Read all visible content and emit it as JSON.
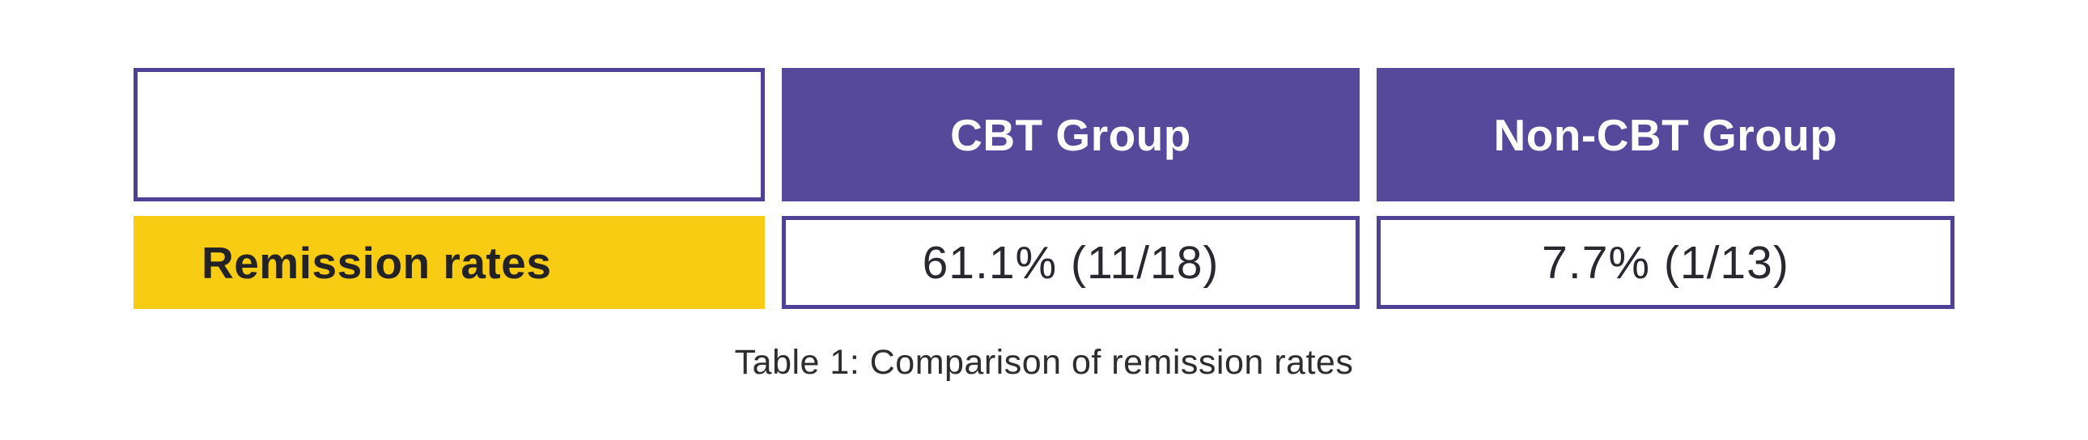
{
  "table": {
    "corner_label": "",
    "columns": [
      {
        "label": "CBT Group"
      },
      {
        "label": "Non-CBT Group"
      }
    ],
    "rows": [
      {
        "label": "Remission rates",
        "values": [
          "61.1% (11/18)",
          "7.7% (1/13)"
        ]
      }
    ],
    "caption": "Table 1: Comparison of remission rates"
  },
  "colors": {
    "header_purple": "#56489A",
    "border_purple": "#4F4296",
    "accent_yellow": "#F8CC12",
    "text_dark": "#232227",
    "text_white": "#FFFFFF",
    "background": "#FFFFFF"
  },
  "chart_data": {
    "type": "table",
    "title": "Table 1: Comparison of remission rates",
    "columns": [
      "",
      "CBT Group",
      "Non-CBT Group"
    ],
    "rows": [
      [
        "Remission rates",
        "61.1% (11/18)",
        "7.7% (1/13)"
      ]
    ],
    "values": {
      "cbt_remission_percent": 61.1,
      "cbt_remitted": 11,
      "cbt_total": 18,
      "non_cbt_remission_percent": 7.7,
      "non_cbt_remitted": 1,
      "non_cbt_total": 13
    }
  }
}
